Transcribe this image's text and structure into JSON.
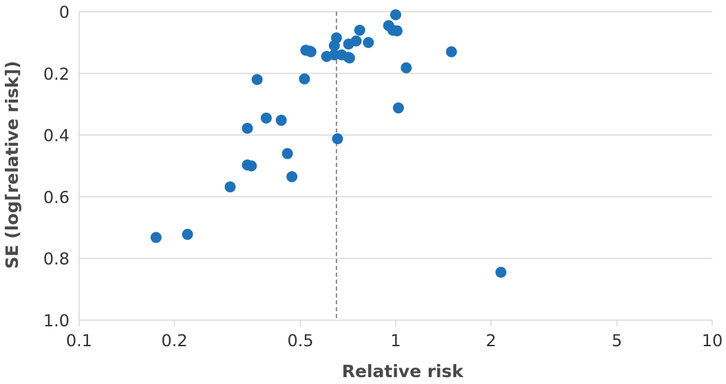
{
  "chart_data": {
    "type": "scatter",
    "title": "",
    "xlabel": "Relative risk",
    "ylabel": "SE (log[relative risk])",
    "x_scale": "log",
    "xlim": [
      0.1,
      10
    ],
    "ylim": [
      0,
      1.0
    ],
    "y_inverted": true,
    "x_ticks": [
      0.1,
      0.2,
      0.5,
      1,
      2,
      5,
      10
    ],
    "x_tick_labels": [
      "0.1",
      "0.2",
      "0.5",
      "1",
      "2",
      "5",
      "10"
    ],
    "y_ticks": [
      0,
      0.2,
      0.4,
      0.6,
      0.8,
      1.0
    ],
    "y_tick_labels": [
      "0",
      "0.2",
      "0.4",
      "0.6",
      "0.8",
      "1.0"
    ],
    "grid": "horizontal",
    "reference_line_x": 0.65,
    "marker_color": "#1f72b8",
    "points": [
      {
        "x": 1.0,
        "y": 0.01
      },
      {
        "x": 0.95,
        "y": 0.045
      },
      {
        "x": 0.98,
        "y": 0.06
      },
      {
        "x": 1.01,
        "y": 0.062
      },
      {
        "x": 0.77,
        "y": 0.06
      },
      {
        "x": 0.65,
        "y": 0.085
      },
      {
        "x": 0.75,
        "y": 0.095
      },
      {
        "x": 0.82,
        "y": 0.1
      },
      {
        "x": 0.71,
        "y": 0.105
      },
      {
        "x": 0.64,
        "y": 0.11
      },
      {
        "x": 0.52,
        "y": 0.125
      },
      {
        "x": 0.535,
        "y": 0.128
      },
      {
        "x": 0.54,
        "y": 0.13
      },
      {
        "x": 1.5,
        "y": 0.13
      },
      {
        "x": 0.675,
        "y": 0.14
      },
      {
        "x": 0.64,
        "y": 0.14
      },
      {
        "x": 0.605,
        "y": 0.145
      },
      {
        "x": 0.715,
        "y": 0.15
      },
      {
        "x": 0.71,
        "y": 0.148
      },
      {
        "x": 1.08,
        "y": 0.182
      },
      {
        "x": 0.365,
        "y": 0.22
      },
      {
        "x": 0.515,
        "y": 0.218
      },
      {
        "x": 1.02,
        "y": 0.312
      },
      {
        "x": 0.39,
        "y": 0.345
      },
      {
        "x": 0.435,
        "y": 0.352
      },
      {
        "x": 0.34,
        "y": 0.378
      },
      {
        "x": 0.655,
        "y": 0.412
      },
      {
        "x": 0.455,
        "y": 0.46
      },
      {
        "x": 0.34,
        "y": 0.497
      },
      {
        "x": 0.35,
        "y": 0.5
      },
      {
        "x": 0.47,
        "y": 0.535
      },
      {
        "x": 0.3,
        "y": 0.568
      },
      {
        "x": 0.22,
        "y": 0.722
      },
      {
        "x": 0.175,
        "y": 0.732
      },
      {
        "x": 2.15,
        "y": 0.845
      }
    ]
  }
}
